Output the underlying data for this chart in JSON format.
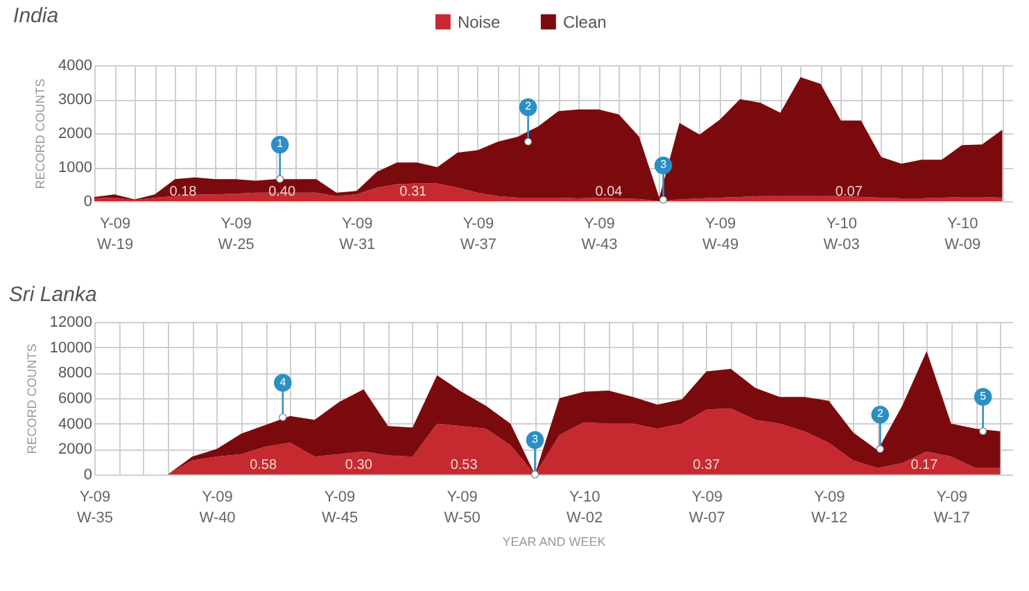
{
  "chart_data": [
    {
      "type": "area",
      "title": "India",
      "ylabel": "RECORD COUNTS",
      "stacked": true,
      "grid": true,
      "legend": "top",
      "categories": [
        null,
        "Y-09 W-19",
        null,
        null,
        null,
        null,
        null,
        "Y-09 W-25",
        null,
        null,
        null,
        null,
        null,
        "Y-09 W-31",
        null,
        null,
        null,
        null,
        null,
        "Y-09 W-37",
        null,
        null,
        null,
        null,
        null,
        "Y-09 W-43",
        null,
        null,
        null,
        null,
        null,
        "Y-09 W-49",
        null,
        null,
        null,
        null,
        null,
        "Y-10 W-03",
        null,
        null,
        null,
        null,
        null,
        "Y-10 W-09",
        null,
        null
      ],
      "series": [
        {
          "name": "Noise",
          "color": "#c62a30",
          "values": [
            80,
            100,
            30,
            100,
            150,
            200,
            200,
            220,
            250,
            250,
            250,
            250,
            150,
            200,
            400,
            500,
            520,
            520,
            400,
            250,
            150,
            100,
            100,
            100,
            80,
            100,
            80,
            60,
            0,
            50,
            80,
            100,
            120,
            150,
            150,
            150,
            150,
            150,
            120,
            100,
            80,
            80,
            100,
            120,
            120,
            100
          ]
        },
        {
          "name": "Clean",
          "color": "#7b0a0e",
          "values": [
            40,
            100,
            20,
            100,
            500,
            500,
            450,
            430,
            350,
            400,
            400,
            400,
            100,
            100,
            460,
            640,
            620,
            480,
            1030,
            1250,
            1600,
            1800,
            2100,
            2550,
            2620,
            2600,
            2470,
            1840,
            100,
            2250,
            1880,
            2300,
            2880,
            2750,
            2450,
            3500,
            3300,
            2220,
            2250,
            1200,
            1020,
            1140,
            1120,
            1530,
            1550,
            2000
          ]
        }
      ],
      "ylim": [
        0,
        4000
      ],
      "yticks": [
        0,
        1000,
        2000,
        3000,
        4000
      ],
      "annotations": [
        "0.18",
        "0.40",
        "0.31",
        "0.04",
        "0.07",
        {
          "text": "1",
          "y": 650
        },
        {
          "text": "2",
          "y": 1750
        },
        {
          "text": "3",
          "y": 40
        }
      ]
    },
    {
      "type": "area",
      "title": "Sri Lanka",
      "ylabel": "RECORD COUNTS",
      "xlabel": "YEAR AND WEEK",
      "stacked": true,
      "grid": true,
      "categories": [
        "Y-09 W-35",
        null,
        null,
        null,
        null,
        "Y-09 W-40",
        null,
        null,
        null,
        null,
        "Y-09 W-45",
        null,
        null,
        null,
        null,
        "Y-09 W-50",
        null,
        null,
        null,
        null,
        "Y-10 W-02",
        null,
        null,
        null,
        null,
        "Y-09 W-07",
        null,
        null,
        null,
        null,
        "Y-09 W-12",
        null,
        null,
        null,
        null,
        "Y-09 W-17",
        null,
        null
      ],
      "series": [
        {
          "name": "Noise",
          "color": "#c62a30",
          "values": [
            0,
            0,
            0,
            0,
            1100,
            1400,
            1600,
            2200,
            2500,
            1400,
            1600,
            1800,
            1500,
            1400,
            4000,
            3800,
            3600,
            2300,
            0,
            3100,
            4100,
            4000,
            4000,
            3600,
            4000,
            5100,
            5200,
            4300,
            4000,
            3400,
            2500,
            1100,
            500,
            900,
            1800,
            1400,
            500,
            500
          ]
        },
        {
          "name": "Clean",
          "color": "#7b0a0e",
          "values": [
            0,
            0,
            0,
            0,
            300,
            600,
            1600,
            1700,
            2100,
            2900,
            4100,
            4900,
            2300,
            2300,
            3800,
            2700,
            1800,
            1700,
            0,
            2900,
            2400,
            2600,
            2100,
            1900,
            1900,
            3000,
            3100,
            2500,
            2100,
            2700,
            3300,
            2200,
            1400,
            4500,
            7900,
            2600,
            3100,
            2900
          ]
        }
      ],
      "ylim": [
        0,
        12000
      ],
      "yticks": [
        0,
        2000,
        4000,
        6000,
        8000,
        10000,
        12000
      ],
      "annotations": [
        "0.58",
        "0.30",
        "0.53",
        "0.37",
        "0.17",
        {
          "text": "4",
          "y": 4500
        },
        {
          "text": "3",
          "y": 0
        },
        {
          "text": "2",
          "y": 2000
        },
        {
          "text": "5",
          "y": 3400
        }
      ]
    }
  ]
}
